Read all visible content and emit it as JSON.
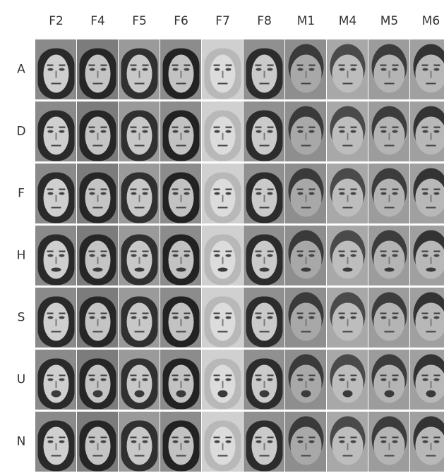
{
  "columns": [
    "F2",
    "F4",
    "F5",
    "F6",
    "F7",
    "F8",
    "M1",
    "M4",
    "M5",
    "M6"
  ],
  "rows": [
    "A",
    "D",
    "F",
    "H",
    "S",
    "U",
    "N"
  ]
}
